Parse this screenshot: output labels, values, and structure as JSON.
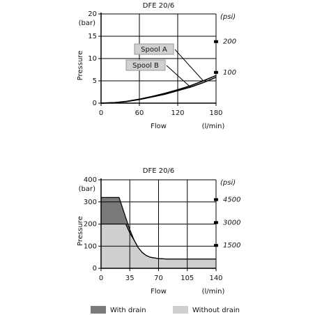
{
  "chart_data": [
    {
      "type": "line",
      "title": "DFE 20/6",
      "y_label": "Pressure",
      "y_unit": "(bar)",
      "y2_unit": "(psi)",
      "x_label": "Flow",
      "x_unit": "(l/min)",
      "x": [
        0,
        20,
        40,
        60,
        80,
        100,
        120,
        140,
        160,
        180
      ],
      "series": [
        {
          "name": "Spool A",
          "color": "#000000",
          "values": [
            0,
            0.1,
            0.4,
            0.9,
            1.5,
            2.2,
            3.0,
            3.9,
            5.0,
            6.2
          ]
        },
        {
          "name": "Spool B",
          "color": "#000000",
          "values": [
            0,
            0.1,
            0.35,
            0.8,
            1.4,
            2.0,
            2.8,
            3.6,
            4.6,
            5.8
          ]
        }
      ],
      "xlim": [
        0,
        180
      ],
      "xticks": [
        0,
        60,
        120,
        180
      ],
      "ylim": [
        0,
        20
      ],
      "yticks": [
        0,
        5,
        10,
        15,
        20
      ],
      "y2lim": [
        0,
        290
      ],
      "y2ticks": [
        100,
        200
      ],
      "grid": true,
      "legend": "inline"
    },
    {
      "type": "area",
      "title": "DFE 20/6",
      "y_label": "Pressure",
      "y_unit": "(bar)",
      "y2_unit": "(psi)",
      "x_label": "Flow",
      "x_unit": "(l/min)",
      "x": [
        0,
        22,
        30,
        35,
        40,
        45,
        50,
        55,
        60,
        70,
        80,
        140
      ],
      "series": [
        {
          "name": "With drain",
          "color": "#7a7a7a",
          "values": [
            320,
            320,
            230,
            175,
            130,
            95,
            72,
            58,
            50,
            44,
            42,
            42
          ]
        },
        {
          "name": "Without drain",
          "color": "#cfcfcf",
          "values": [
            200,
            200,
            200,
            160,
            128,
            95,
            72,
            58,
            50,
            44,
            42,
            42
          ]
        }
      ],
      "xlim": [
        0,
        140
      ],
      "xticks": [
        0,
        35,
        70,
        105,
        140
      ],
      "ylim": [
        0,
        400
      ],
      "yticks": [
        0,
        100,
        200,
        300,
        400
      ],
      "y2lim": [
        0,
        5800
      ],
      "y2ticks": [
        1500,
        3000,
        4500
      ],
      "grid": true,
      "legend": "bottom"
    }
  ]
}
